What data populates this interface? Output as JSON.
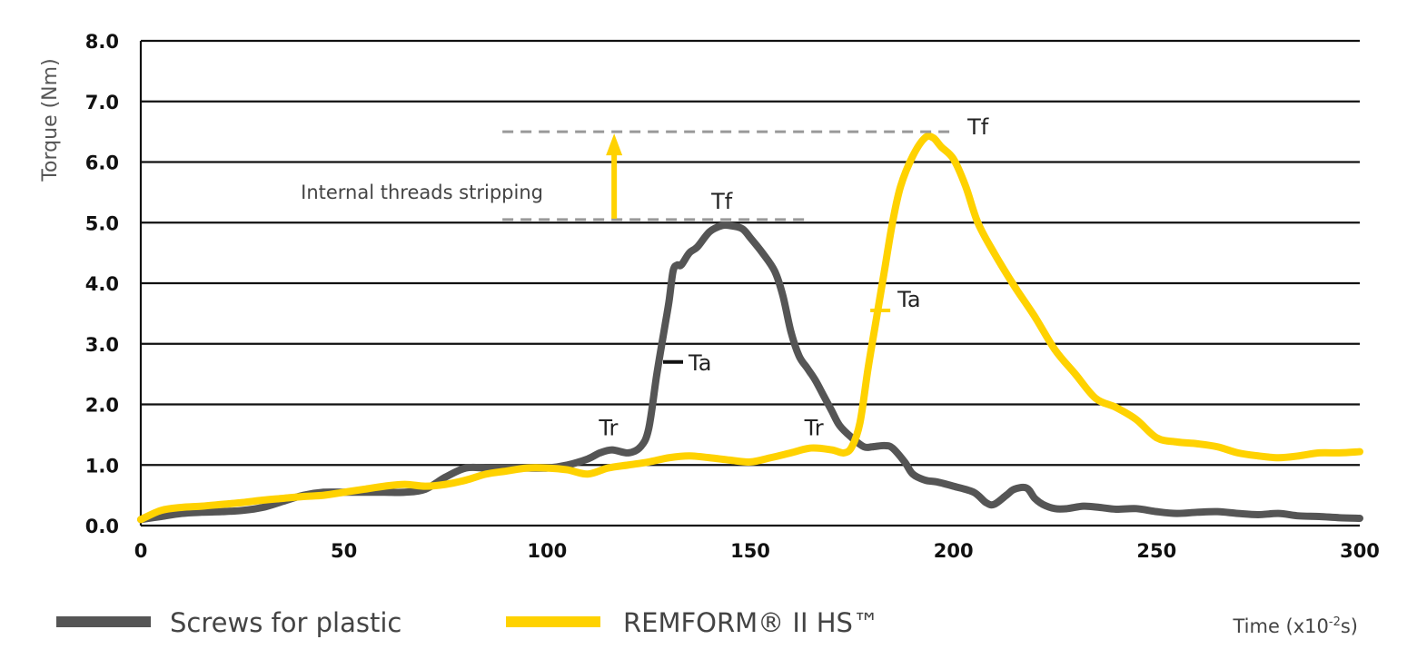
{
  "chart_data": {
    "type": "line",
    "xlabel": "Time (x10",
    "xlabel_sup": "-2",
    "xlabel_suffix": "s)",
    "ylabel": "Torque (Nm)",
    "xlim": [
      0,
      300
    ],
    "ylim": [
      0,
      8
    ],
    "x_ticks": [
      "0",
      "50",
      "100",
      "150",
      "200",
      "250",
      "300"
    ],
    "x_tick_values": [
      0,
      50,
      100,
      150,
      200,
      250,
      300
    ],
    "y_ticks": [
      "0.0",
      "1.0",
      "2.0",
      "3.0",
      "4.0",
      "5.0",
      "6.0",
      "7.0",
      "8.0"
    ],
    "y_tick_values": [
      0,
      1,
      2,
      3,
      4,
      5,
      6,
      7,
      8
    ],
    "grid": "horizontal",
    "legend_placement": "bottom",
    "series": [
      {
        "name": "Screws for plastic",
        "color": "#555555",
        "x": [
          0,
          5,
          10,
          15,
          20,
          25,
          30,
          35,
          40,
          45,
          50,
          55,
          60,
          65,
          70,
          75,
          80,
          85,
          90,
          95,
          100,
          105,
          110,
          113,
          116,
          120,
          123,
          125,
          127,
          129,
          130,
          131,
          132,
          133,
          135,
          137,
          140,
          143,
          145,
          148,
          150,
          153,
          156,
          158,
          160,
          162,
          164,
          166,
          168,
          170,
          172,
          175,
          178,
          180,
          183,
          185,
          188,
          190,
          193,
          196,
          200,
          205,
          208,
          210,
          213,
          215,
          218,
          220,
          222,
          225,
          228,
          232,
          236,
          240,
          245,
          250,
          255,
          260,
          265,
          270,
          275,
          280,
          285,
          290,
          295,
          300
        ],
        "y": [
          0.1,
          0.15,
          0.2,
          0.22,
          0.23,
          0.25,
          0.3,
          0.4,
          0.5,
          0.55,
          0.55,
          0.55,
          0.55,
          0.55,
          0.6,
          0.8,
          0.95,
          0.95,
          0.95,
          0.95,
          0.95,
          1.0,
          1.1,
          1.2,
          1.25,
          1.2,
          1.3,
          1.6,
          2.5,
          3.3,
          3.7,
          4.2,
          4.3,
          4.3,
          4.5,
          4.6,
          4.85,
          4.95,
          4.95,
          4.9,
          4.75,
          4.5,
          4.2,
          3.8,
          3.2,
          2.8,
          2.6,
          2.4,
          2.15,
          1.9,
          1.65,
          1.45,
          1.3,
          1.3,
          1.32,
          1.28,
          1.05,
          0.85,
          0.75,
          0.72,
          0.65,
          0.55,
          0.38,
          0.35,
          0.5,
          0.6,
          0.62,
          0.45,
          0.35,
          0.28,
          0.28,
          0.32,
          0.3,
          0.27,
          0.28,
          0.23,
          0.2,
          0.22,
          0.23,
          0.2,
          0.18,
          0.2,
          0.16,
          0.15,
          0.13,
          0.12
        ]
      },
      {
        "name": "REMFORM® II HS™",
        "color": "#FFD200",
        "x": [
          0,
          5,
          10,
          15,
          20,
          25,
          30,
          35,
          40,
          45,
          50,
          55,
          60,
          65,
          70,
          75,
          80,
          85,
          90,
          95,
          100,
          105,
          110,
          115,
          120,
          125,
          130,
          135,
          140,
          145,
          150,
          155,
          160,
          165,
          170,
          173,
          175,
          177,
          179,
          181,
          183,
          185,
          187,
          190,
          193,
          195,
          197,
          200,
          203,
          206,
          210,
          215,
          220,
          225,
          230,
          235,
          240,
          245,
          250,
          255,
          260,
          265,
          270,
          275,
          280,
          285,
          290,
          295,
          300
        ],
        "y": [
          0.1,
          0.25,
          0.3,
          0.32,
          0.35,
          0.38,
          0.42,
          0.45,
          0.48,
          0.5,
          0.55,
          0.6,
          0.65,
          0.68,
          0.65,
          0.68,
          0.75,
          0.85,
          0.9,
          0.95,
          0.95,
          0.92,
          0.85,
          0.95,
          1.0,
          1.05,
          1.12,
          1.15,
          1.12,
          1.08,
          1.05,
          1.12,
          1.2,
          1.28,
          1.25,
          1.2,
          1.3,
          1.7,
          2.6,
          3.4,
          4.2,
          5.0,
          5.6,
          6.1,
          6.4,
          6.4,
          6.25,
          6.05,
          5.6,
          5.0,
          4.5,
          3.95,
          3.45,
          2.9,
          2.5,
          2.1,
          1.95,
          1.75,
          1.45,
          1.38,
          1.35,
          1.3,
          1.2,
          1.15,
          1.12,
          1.15,
          1.2,
          1.2,
          1.22
        ]
      }
    ],
    "annotations": {
      "stripping_label": "Internal threads stripping",
      "tf_label": "Tf",
      "ta_label": "Ta",
      "tr_label": "Tr",
      "tf_gray_level": 5.05,
      "tf_yellow_level": 6.5,
      "ta_gray": {
        "x": 131,
        "y": 2.7
      },
      "ta_yellow": {
        "x": 182,
        "y": 3.55
      },
      "tr_gray": {
        "x": 116,
        "y": 1.25
      },
      "tr_yellow": {
        "x": 165,
        "y": 1.28
      }
    }
  }
}
